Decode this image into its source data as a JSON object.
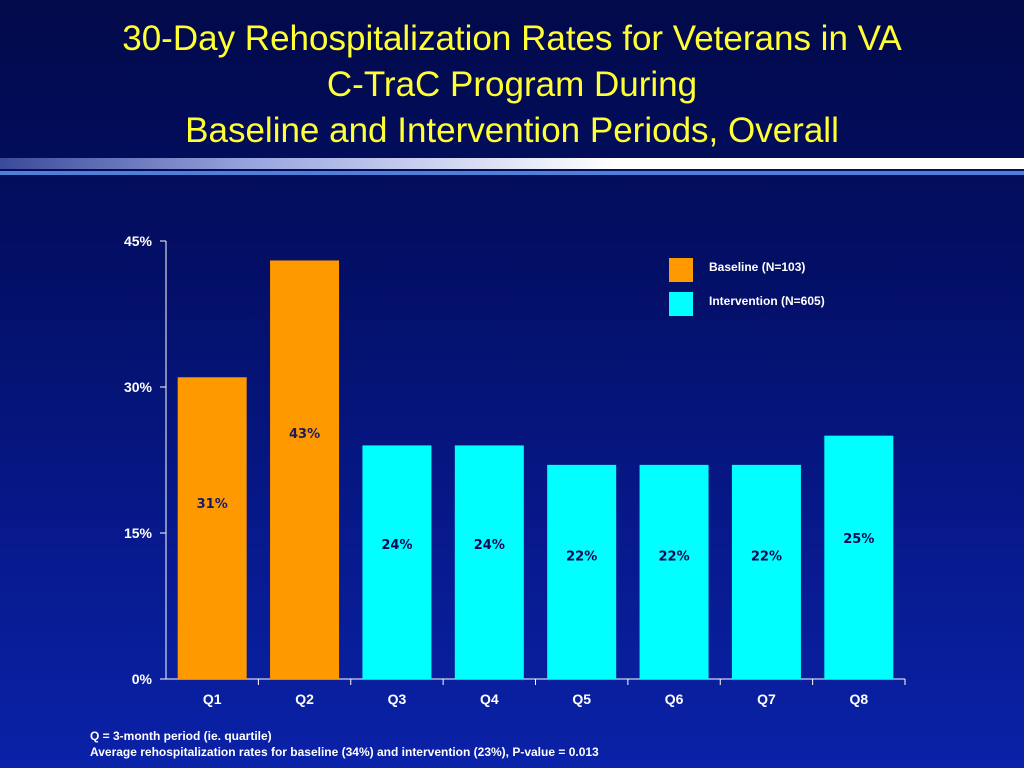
{
  "title": {
    "line1": "30-Day Rehospitalization Rates for Veterans in VA",
    "line2": "C-TraC Program During",
    "line3": "Baseline and Intervention Periods, Overall"
  },
  "colors": {
    "baseline": "#ff9900",
    "intervention": "#00ffff",
    "title": "#ffff33",
    "label_baseline": "#1a1a66",
    "label_intervention": "#0a0a55"
  },
  "chart_data": {
    "type": "bar",
    "categories": [
      "Q1",
      "Q2",
      "Q3",
      "Q4",
      "Q5",
      "Q6",
      "Q7",
      "Q8"
    ],
    "values": [
      31,
      43,
      24,
      24,
      22,
      22,
      22,
      25
    ],
    "groups": [
      "baseline",
      "baseline",
      "intervention",
      "intervention",
      "intervention",
      "intervention",
      "intervention",
      "intervention"
    ],
    "data_labels": [
      "31%",
      "43%",
      "24%",
      "24%",
      "22%",
      "22%",
      "22%",
      "25%"
    ],
    "ylim": [
      0,
      45
    ],
    "yticks": [
      0,
      15,
      30,
      45
    ],
    "ytick_labels": [
      "0%",
      "15%",
      "30%",
      "45%"
    ],
    "legend": [
      {
        "key": "baseline",
        "label": "Baseline (N=103)"
      },
      {
        "key": "intervention",
        "label": "Intervention (N=605)"
      }
    ],
    "legend_position": "top-right",
    "grid": false
  },
  "footnote": {
    "line1": "Q = 3-month period (ie. quartile)",
    "line2": "Average rehospitalization rates for baseline (34%) and intervention (23%), P-value = 0.013"
  }
}
